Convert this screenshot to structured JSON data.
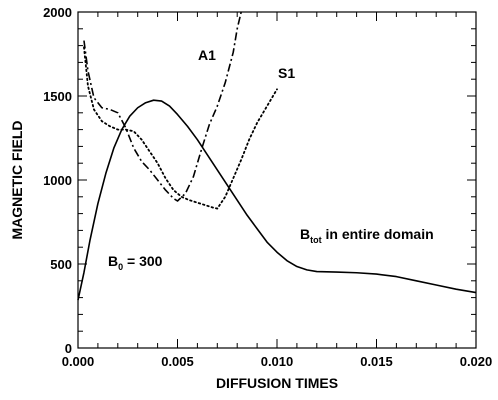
{
  "chart_data": {
    "type": "line",
    "title": "",
    "xlabel": "DIFFUSION TIMES",
    "ylabel": "MAGNETIC FIELD",
    "xlim": [
      0.0,
      0.02
    ],
    "ylim": [
      0,
      2000
    ],
    "x_ticks": [
      "0.000",
      "0.005",
      "0.010",
      "0.015",
      "0.020"
    ],
    "y_ticks": [
      "0",
      "500",
      "1000",
      "1500",
      "2000"
    ],
    "grid": false,
    "legend": "none",
    "series": [
      {
        "name": "B_tot in entire domain",
        "style": "solid",
        "color": "#000000",
        "points": [
          [
            0.0,
            285
          ],
          [
            0.0003,
            450
          ],
          [
            0.0006,
            640
          ],
          [
            0.001,
            860
          ],
          [
            0.0014,
            1040
          ],
          [
            0.0018,
            1190
          ],
          [
            0.0022,
            1300
          ],
          [
            0.0026,
            1380
          ],
          [
            0.003,
            1430
          ],
          [
            0.0034,
            1460
          ],
          [
            0.0038,
            1475
          ],
          [
            0.0042,
            1470
          ],
          [
            0.0046,
            1440
          ],
          [
            0.005,
            1390
          ],
          [
            0.0055,
            1320
          ],
          [
            0.006,
            1240
          ],
          [
            0.0065,
            1150
          ],
          [
            0.007,
            1060
          ],
          [
            0.0075,
            970
          ],
          [
            0.008,
            880
          ],
          [
            0.0085,
            790
          ],
          [
            0.009,
            710
          ],
          [
            0.0095,
            630
          ],
          [
            0.01,
            570
          ],
          [
            0.0105,
            520
          ],
          [
            0.011,
            485
          ],
          [
            0.0115,
            465
          ],
          [
            0.012,
            455
          ],
          [
            0.013,
            452
          ],
          [
            0.014,
            448
          ],
          [
            0.015,
            440
          ],
          [
            0.016,
            425
          ],
          [
            0.017,
            400
          ],
          [
            0.018,
            375
          ],
          [
            0.019,
            350
          ],
          [
            0.02,
            330
          ]
        ]
      },
      {
        "name": "A1",
        "style": "dashdot",
        "color": "#000000",
        "points": [
          [
            0.0003,
            1830
          ],
          [
            0.0005,
            1650
          ],
          [
            0.0008,
            1490
          ],
          [
            0.0012,
            1430
          ],
          [
            0.0016,
            1420
          ],
          [
            0.002,
            1400
          ],
          [
            0.0024,
            1310
          ],
          [
            0.0028,
            1190
          ],
          [
            0.0032,
            1110
          ],
          [
            0.0036,
            1060
          ],
          [
            0.004,
            1000
          ],
          [
            0.0044,
            940
          ],
          [
            0.0048,
            890
          ],
          [
            0.005,
            875
          ],
          [
            0.0054,
            920
          ],
          [
            0.0058,
            1020
          ],
          [
            0.0062,
            1180
          ],
          [
            0.0066,
            1330
          ],
          [
            0.007,
            1440
          ],
          [
            0.0074,
            1580
          ],
          [
            0.0078,
            1760
          ],
          [
            0.008,
            1900
          ],
          [
            0.0082,
            2000
          ]
        ]
      },
      {
        "name": "S1",
        "style": "dotted",
        "color": "#000000",
        "points": [
          [
            0.0003,
            1790
          ],
          [
            0.0005,
            1560
          ],
          [
            0.0008,
            1420
          ],
          [
            0.0012,
            1350
          ],
          [
            0.0016,
            1320
          ],
          [
            0.002,
            1300
          ],
          [
            0.0024,
            1300
          ],
          [
            0.0028,
            1290
          ],
          [
            0.0032,
            1240
          ],
          [
            0.0036,
            1170
          ],
          [
            0.004,
            1100
          ],
          [
            0.0044,
            1010
          ],
          [
            0.0048,
            940
          ],
          [
            0.0052,
            900
          ],
          [
            0.0056,
            880
          ],
          [
            0.006,
            865
          ],
          [
            0.0064,
            850
          ],
          [
            0.0068,
            835
          ],
          [
            0.007,
            830
          ],
          [
            0.0074,
            900
          ],
          [
            0.0078,
            1010
          ],
          [
            0.0082,
            1120
          ],
          [
            0.0086,
            1240
          ],
          [
            0.009,
            1340
          ],
          [
            0.0095,
            1440
          ],
          [
            0.01,
            1540
          ]
        ]
      }
    ],
    "annotations": [
      {
        "name": "A1",
        "at": [
          0.0068,
          1780
        ]
      },
      {
        "name": "S1",
        "at": [
          0.0102,
          1640
        ]
      },
      {
        "name": "B_tot in entire domain",
        "at": [
          0.0118,
          800
        ]
      },
      {
        "name": "B_0 = 300",
        "at": [
          0.0018,
          560
        ]
      }
    ]
  },
  "labels": {
    "a1": "A1",
    "s1": "S1",
    "btot_main": "B",
    "btot_sub": "tot",
    "btot_rest": " in entire domain",
    "b0_main": "B",
    "b0_sub": "0",
    "b0_rest": " = 300"
  }
}
